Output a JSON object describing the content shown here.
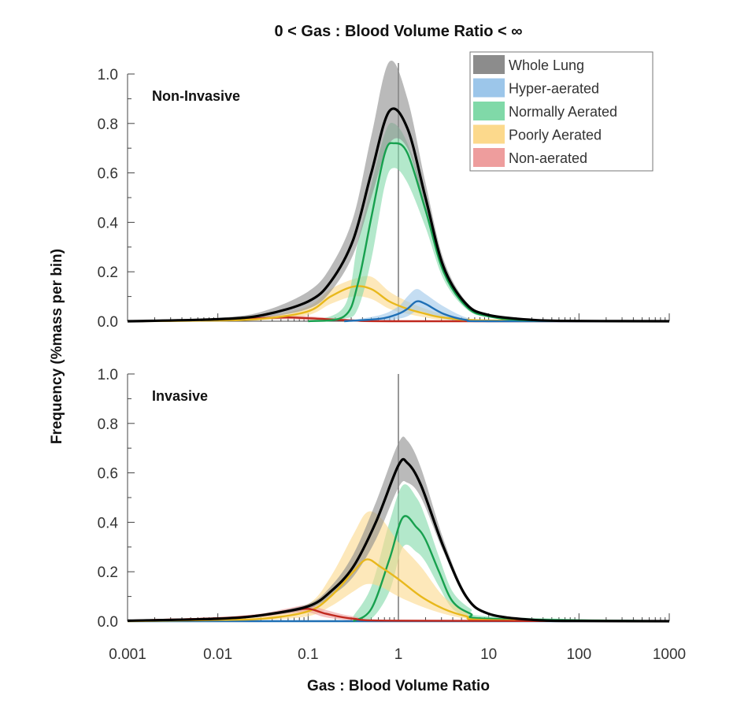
{
  "chart_data": {
    "type": "line",
    "title": "0 < Gas : Blood Volume Ratio < ∞",
    "xlabel": "Gas : Blood Volume Ratio",
    "ylabel": "Frequency (%mass per bin)",
    "xscale": "log",
    "xlim": [
      0.001,
      1000
    ],
    "ylim": [
      0,
      1.0
    ],
    "x_ticks": [
      "0.001",
      "0.01",
      "0.1",
      "1",
      "10",
      "100",
      "1000"
    ],
    "y_ticks": [
      "0.0",
      "0.2",
      "0.4",
      "0.6",
      "0.8",
      "1.0"
    ],
    "reference_line_x": 1,
    "legend_position": "top-right",
    "point_format": "[log10(x), mean, band_low, band_high]",
    "series_styles": [
      {
        "name": "Whole Lung",
        "band": "#8c8c8c",
        "line": "#000000"
      },
      {
        "name": "Hyper-aerated",
        "band": "#9cc6ea",
        "line": "#1f6fb5"
      },
      {
        "name": "Normally Aerated",
        "band": "#80d9a8",
        "line": "#17a04e"
      },
      {
        "name": "Poorly Aerated",
        "band": "#fcd98c",
        "line": "#e8b81c"
      },
      {
        "name": "Non-aerated",
        "band": "#ee9d9d",
        "line": "#c0281e"
      }
    ],
    "panels": [
      {
        "label": "Non-Invasive",
        "series": [
          {
            "name": "Non-aerated",
            "points": [
              [
                -3,
                0,
                0,
                0.003
              ],
              [
                -2,
                0.005,
                0.002,
                0.01
              ],
              [
                -1.3,
                0.015,
                0.008,
                0.025
              ],
              [
                -1,
                0.012,
                0.005,
                0.02
              ],
              [
                -0.5,
                0.003,
                0,
                0.008
              ],
              [
                0,
                0,
                0,
                0.002
              ],
              [
                3,
                0,
                0,
                0
              ]
            ]
          },
          {
            "name": "Poorly Aerated",
            "points": [
              [
                -3,
                0,
                0,
                0
              ],
              [
                -2,
                0.003,
                0.001,
                0.006
              ],
              [
                -1.5,
                0.01,
                0.005,
                0.016
              ],
              [
                -1,
                0.04,
                0.025,
                0.06
              ],
              [
                -0.75,
                0.1,
                0.07,
                0.13
              ],
              [
                -0.5,
                0.14,
                0.1,
                0.17
              ],
              [
                -0.3,
                0.13,
                0.09,
                0.18
              ],
              [
                -0.1,
                0.08,
                0.05,
                0.12
              ],
              [
                0.1,
                0.05,
                0.03,
                0.08
              ],
              [
                0.3,
                0.03,
                0.015,
                0.05
              ],
              [
                0.5,
                0.015,
                0.005,
                0.03
              ],
              [
                1,
                0.003,
                0,
                0.006
              ],
              [
                3,
                0,
                0,
                0
              ]
            ]
          },
          {
            "name": "Hyper-aerated",
            "points": [
              [
                -0.6,
                0,
                0,
                0
              ],
              [
                -0.2,
                0.01,
                0,
                0.025
              ],
              [
                0,
                0.03,
                0.01,
                0.06
              ],
              [
                0.1,
                0.05,
                0.02,
                0.1
              ],
              [
                0.2,
                0.08,
                0.04,
                0.13
              ],
              [
                0.3,
                0.07,
                0.035,
                0.11
              ],
              [
                0.5,
                0.03,
                0.01,
                0.06
              ],
              [
                0.75,
                0.005,
                0,
                0.015
              ],
              [
                1,
                0,
                0,
                0
              ],
              [
                3,
                0,
                0,
                0
              ]
            ]
          },
          {
            "name": "Normally Aerated",
            "points": [
              [
                -1,
                0,
                0,
                0
              ],
              [
                -0.6,
                0.02,
                0.01,
                0.06
              ],
              [
                -0.45,
                0.15,
                0.05,
                0.32
              ],
              [
                -0.3,
                0.42,
                0.25,
                0.55
              ],
              [
                -0.15,
                0.68,
                0.55,
                0.76
              ],
              [
                -0.05,
                0.72,
                0.62,
                0.8
              ],
              [
                0.1,
                0.68,
                0.56,
                0.72
              ],
              [
                0.3,
                0.45,
                0.38,
                0.5
              ],
              [
                0.5,
                0.2,
                0.17,
                0.23
              ],
              [
                0.75,
                0.06,
                0.05,
                0.07
              ],
              [
                1,
                0.02,
                0.015,
                0.025
              ],
              [
                1.5,
                0.003,
                0.002,
                0.004
              ],
              [
                3,
                0,
                0,
                0
              ]
            ]
          },
          {
            "name": "Whole Lung",
            "points": [
              [
                -3,
                0,
                0,
                0.002
              ],
              [
                -2,
                0.008,
                0.004,
                0.014
              ],
              [
                -1.5,
                0.025,
                0.015,
                0.04
              ],
              [
                -1,
                0.08,
                0.05,
                0.12
              ],
              [
                -0.75,
                0.16,
                0.12,
                0.22
              ],
              [
                -0.5,
                0.33,
                0.27,
                0.42
              ],
              [
                -0.3,
                0.6,
                0.5,
                0.75
              ],
              [
                -0.1,
                0.85,
                0.72,
                1.05
              ],
              [
                0.1,
                0.78,
                0.7,
                0.9
              ],
              [
                0.3,
                0.5,
                0.45,
                0.56
              ],
              [
                0.5,
                0.22,
                0.2,
                0.25
              ],
              [
                0.75,
                0.07,
                0.06,
                0.08
              ],
              [
                1,
                0.025,
                0.02,
                0.03
              ],
              [
                1.5,
                0.005,
                0.004,
                0.006
              ],
              [
                2,
                0.001,
                0,
                0.002
              ],
              [
                3,
                0,
                0,
                0
              ]
            ]
          }
        ]
      },
      {
        "label": "Invasive",
        "series": [
          {
            "name": "Hyper-aerated",
            "points": [
              [
                -3,
                0,
                0,
                0
              ],
              [
                3,
                0,
                0,
                0
              ]
            ]
          },
          {
            "name": "Normally Aerated",
            "points": [
              [
                -0.5,
                0,
                0,
                0.02
              ],
              [
                -0.3,
                0.05,
                0.01,
                0.14
              ],
              [
                -0.1,
                0.25,
                0.12,
                0.4
              ],
              [
                0.05,
                0.42,
                0.3,
                0.55
              ],
              [
                0.2,
                0.38,
                0.28,
                0.5
              ],
              [
                0.3,
                0.33,
                0.24,
                0.42
              ],
              [
                0.45,
                0.2,
                0.14,
                0.26
              ],
              [
                0.6,
                0.08,
                0.05,
                0.12
              ],
              [
                0.8,
                0.03,
                0.015,
                0.05
              ],
              [
                1,
                0.01,
                0.005,
                0.02
              ],
              [
                3,
                0,
                0,
                0
              ]
            ]
          },
          {
            "name": "Poorly Aerated",
            "points": [
              [
                -3,
                0,
                0,
                0
              ],
              [
                -2,
                0.005,
                0.002,
                0.01
              ],
              [
                -1.5,
                0.01,
                0.005,
                0.02
              ],
              [
                -1,
                0.04,
                0.02,
                0.07
              ],
              [
                -0.75,
                0.1,
                0.06,
                0.18
              ],
              [
                -0.5,
                0.2,
                0.12,
                0.35
              ],
              [
                -0.35,
                0.25,
                0.15,
                0.44
              ],
              [
                -0.2,
                0.22,
                0.14,
                0.42
              ],
              [
                0,
                0.17,
                0.1,
                0.32
              ],
              [
                0.25,
                0.1,
                0.06,
                0.22
              ],
              [
                0.5,
                0.05,
                0.03,
                0.1
              ],
              [
                0.75,
                0.02,
                0.01,
                0.04
              ],
              [
                1,
                0.005,
                0,
                0.01
              ],
              [
                3,
                0,
                0,
                0
              ]
            ]
          },
          {
            "name": "Non-aerated",
            "points": [
              [
                -3,
                0.002,
                0,
                0.004
              ],
              [
                -2,
                0.012,
                0.008,
                0.016
              ],
              [
                -1.5,
                0.025,
                0.018,
                0.032
              ],
              [
                -1.25,
                0.04,
                0.03,
                0.05
              ],
              [
                -1,
                0.05,
                0.035,
                0.065
              ],
              [
                -0.8,
                0.03,
                0.015,
                0.045
              ],
              [
                -0.5,
                0.01,
                0.003,
                0.02
              ],
              [
                0,
                0.002,
                0,
                0.005
              ],
              [
                3,
                0,
                0,
                0
              ]
            ]
          },
          {
            "name": "Whole Lung",
            "points": [
              [
                -3,
                0.002,
                0.001,
                0.003
              ],
              [
                -2,
                0.01,
                0.008,
                0.013
              ],
              [
                -1.5,
                0.025,
                0.02,
                0.03
              ],
              [
                -1,
                0.06,
                0.05,
                0.07
              ],
              [
                -0.75,
                0.12,
                0.1,
                0.14
              ],
              [
                -0.5,
                0.22,
                0.18,
                0.27
              ],
              [
                -0.25,
                0.4,
                0.33,
                0.48
              ],
              [
                0,
                0.63,
                0.54,
                0.72
              ],
              [
                0.1,
                0.64,
                0.56,
                0.73
              ],
              [
                0.25,
                0.55,
                0.5,
                0.62
              ],
              [
                0.5,
                0.3,
                0.28,
                0.33
              ],
              [
                0.75,
                0.1,
                0.09,
                0.11
              ],
              [
                1,
                0.03,
                0.025,
                0.035
              ],
              [
                1.5,
                0.005,
                0.004,
                0.006
              ],
              [
                2,
                0.001,
                0,
                0.002
              ],
              [
                3,
                0,
                0,
                0
              ]
            ]
          }
        ]
      }
    ],
    "legend": [
      "Whole Lung",
      "Hyper-aerated",
      "Normally Aerated",
      "Poorly Aerated",
      "Non-aerated"
    ]
  }
}
